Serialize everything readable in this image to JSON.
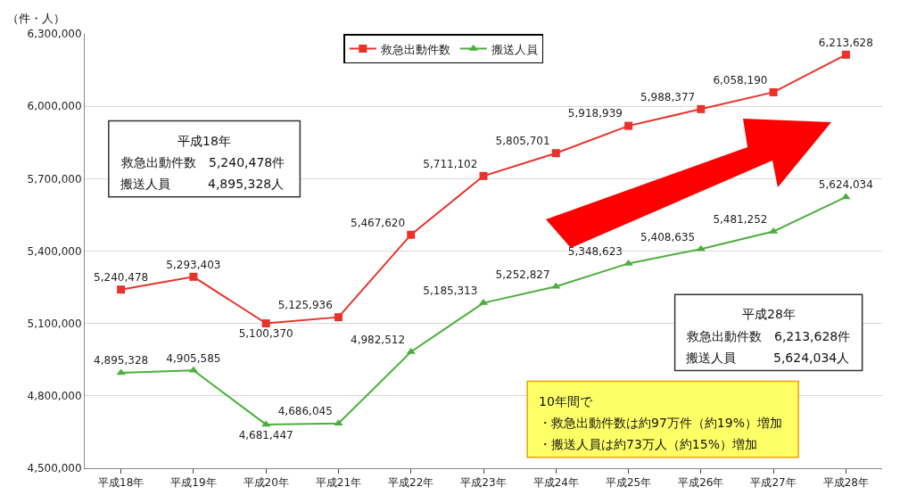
{
  "chart_data": {
    "type": "line",
    "ylabel": "（件・人）",
    "categories": [
      "平成18年",
      "平成19年",
      "平成20年",
      "平成21年",
      "平成22年",
      "平成23年",
      "平成24年",
      "平成25年",
      "平成26年",
      "平成27年",
      "平成28年"
    ],
    "series": [
      {
        "name": "救急出動件数",
        "color": "#e8322a",
        "marker": "square",
        "values": [
          5240478,
          5293403,
          5100370,
          5125936,
          5467620,
          5711102,
          5805701,
          5918939,
          5988377,
          6058190,
          6213628
        ],
        "value_labels": [
          "5,240,478",
          "5,293,403",
          "5,100,370",
          "5,125,936",
          "5,467,620",
          "5,711,102",
          "5,805,701",
          "5,918,939",
          "5,988,377",
          "6,058,190",
          "6,213,628"
        ]
      },
      {
        "name": "搬送人員",
        "color": "#4caf3c",
        "marker": "triangle",
        "values": [
          4895328,
          4905585,
          4681447,
          4686045,
          4982512,
          5185313,
          5252827,
          5348623,
          5408635,
          5481252,
          5624034
        ],
        "value_labels": [
          "4,895,328",
          "4,905,585",
          "4,681,447",
          "4,686,045",
          "4,982,512",
          "5,185,313",
          "5,252,827",
          "5,348,623",
          "5,408,635",
          "5,481,252",
          "5,624,034"
        ]
      }
    ],
    "ylim": [
      4500000,
      6300000
    ],
    "yticks": [
      {
        "value": 4500000,
        "label": "4,500,000"
      },
      {
        "value": 4800000,
        "label": "4,800,000"
      },
      {
        "value": 5100000,
        "label": "5,100,000"
      },
      {
        "value": 5400000,
        "label": "5,400,000"
      },
      {
        "value": 5700000,
        "label": "5,700,000"
      },
      {
        "value": 6000000,
        "label": "6,000,000"
      },
      {
        "value": 6300000,
        "label": "6,300,000"
      }
    ],
    "grid": "y",
    "legend": "top",
    "line_style": "solid",
    "annotations": [
      "平成18年",
      "救急出動件数　5,240,478件",
      "搬送人員　　　4,895,328人",
      "平成28年",
      "救急出動件数　6,213,628件",
      "搬送人員　　　5,624,034人",
      "10年間で",
      "・救急出動件数は約97万件（約19%）増加",
      "・搬送人員は約73万人（約15%）増加"
    ]
  }
}
